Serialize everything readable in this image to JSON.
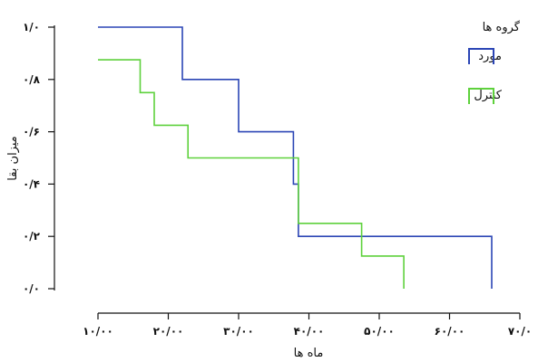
{
  "chart_data": {
    "type": "line",
    "step": true,
    "title": "",
    "xlabel": "ماه ها",
    "ylabel": "میزان بقا",
    "xlim": [
      10,
      70
    ],
    "ylim": [
      0,
      1
    ],
    "x_ticks": [
      10,
      20,
      30,
      40,
      50,
      60,
      70
    ],
    "x_tick_labels": [
      "۱۰/۰۰",
      "۲۰/۰۰",
      "۳۰/۰۰",
      "۴۰/۰۰",
      "۵۰/۰۰",
      "۶۰/۰۰",
      "۷۰/۰"
    ],
    "y_ticks": [
      0,
      0.2,
      0.4,
      0.6,
      0.8,
      1.0
    ],
    "y_tick_labels": [
      "۰/۰",
      "۰/۲",
      "۰/۴",
      "۰/۶",
      "۰/۸",
      "۱/۰"
    ],
    "legend": {
      "title": "گروه ها",
      "placement": "top-right"
    },
    "grid": false,
    "series": [
      {
        "name": "مورد",
        "color": "#2b45b5",
        "points": [
          [
            10,
            1.0
          ],
          [
            22,
            1.0
          ],
          [
            22,
            0.8
          ],
          [
            30,
            0.8
          ],
          [
            30,
            0.6
          ],
          [
            37.8,
            0.6
          ],
          [
            37.8,
            0.4
          ],
          [
            38.5,
            0.4
          ],
          [
            38.5,
            0.2
          ],
          [
            66,
            0.2
          ],
          [
            66,
            0.0
          ]
        ]
      },
      {
        "name": "کنترل",
        "color": "#5ed13c",
        "points": [
          [
            10,
            0.875
          ],
          [
            16,
            0.875
          ],
          [
            16,
            0.75
          ],
          [
            18,
            0.75
          ],
          [
            18,
            0.625
          ],
          [
            22.8,
            0.625
          ],
          [
            22.8,
            0.5
          ],
          [
            38.5,
            0.5
          ],
          [
            38.5,
            0.25
          ],
          [
            47.5,
            0.25
          ],
          [
            47.5,
            0.125
          ],
          [
            53.5,
            0.125
          ],
          [
            53.5,
            0.0
          ]
        ]
      }
    ]
  }
}
